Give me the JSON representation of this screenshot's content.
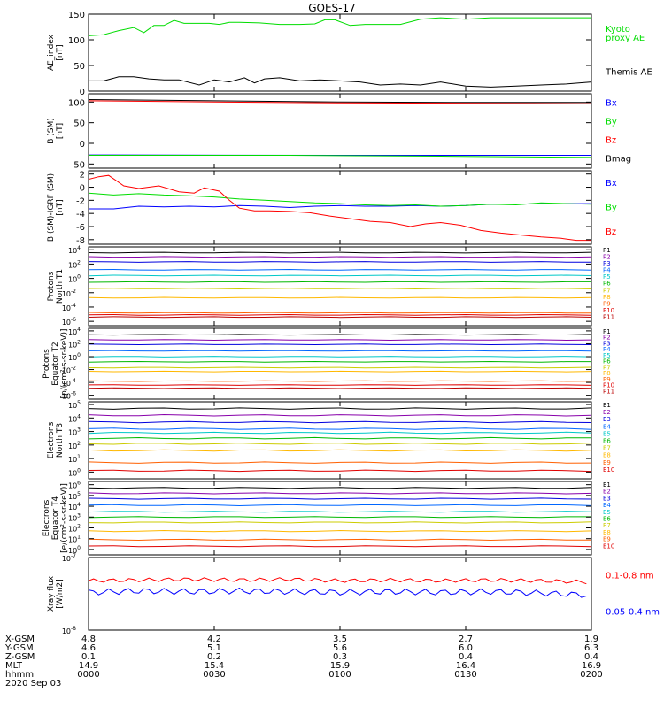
{
  "title": "GOES-17",
  "colors": {
    "black": "#000000",
    "blue": "#0000ff",
    "green": "#00dd00",
    "red": "#ff0000",
    "P": [
      "#000000",
      "#8800aa",
      "#0000dd",
      "#0066ff",
      "#00c8c8",
      "#00b800",
      "#cccc00",
      "#ffb800",
      "#ff6000",
      "#e00000",
      "#bb0000"
    ],
    "E": [
      "#000000",
      "#8800aa",
      "#0000dd",
      "#0066ff",
      "#00c8c8",
      "#00b800",
      "#cccc00",
      "#ffb800",
      "#ff6000",
      "#e00000"
    ]
  },
  "time_labels": [
    "0000",
    "0030",
    "0100",
    "0130",
    "0200"
  ],
  "ephemeris": {
    "labels": [
      "X-GSM",
      "Y-GSM",
      "Z-GSM",
      "MLT",
      "hhmm",
      "2020 Sep 03"
    ],
    "rows": [
      [
        "4.8",
        "4.2",
        "3.5",
        "2.7",
        "1.9"
      ],
      [
        "4.6",
        "5.1",
        "5.6",
        "6.0",
        "6.3"
      ],
      [
        "0.1",
        "0.2",
        "0.3",
        "0.4",
        "0.4"
      ],
      [
        "14.9",
        "15.4",
        "15.9",
        "16.4",
        "16.9"
      ],
      [
        "0000",
        "0030",
        "0100",
        "0130",
        "0200"
      ]
    ]
  },
  "chart_data": [
    {
      "type": "line",
      "ylabel": [
        "AE_index",
        "[nT]"
      ],
      "ylim": [
        0,
        150
      ],
      "yticks": [
        {
          "v": 0,
          "t": "0"
        },
        {
          "v": 50,
          "t": "50"
        },
        {
          "v": 100,
          "t": "100"
        },
        {
          "v": 150,
          "t": "150"
        }
      ],
      "legend": [
        {
          "text": [
            "Kyoto",
            "proxy AE"
          ],
          "color": "green"
        },
        {
          "text": [
            "Themis AE"
          ],
          "color": "black"
        }
      ],
      "series": [
        {
          "name": "Kyoto proxy AE",
          "color": "green",
          "x": [
            0,
            3,
            6,
            9,
            11,
            13,
            15,
            17,
            19,
            22,
            24,
            26,
            28,
            30,
            34,
            38,
            42,
            45,
            47,
            49,
            52,
            55,
            58,
            62,
            66,
            70,
            75,
            80,
            85,
            90,
            95,
            100
          ],
          "y": [
            108,
            110,
            118,
            124,
            114,
            128,
            128,
            138,
            132,
            132,
            132,
            130,
            134,
            134,
            133,
            130,
            130,
            131,
            139,
            139,
            128,
            130,
            130,
            130,
            140,
            143,
            140,
            143,
            143,
            143,
            143,
            143
          ]
        },
        {
          "name": "Themis AE",
          "color": "black",
          "x": [
            0,
            3,
            6,
            9,
            12,
            15,
            18,
            22,
            25,
            28,
            31,
            33,
            35,
            38,
            42,
            46,
            50,
            54,
            58,
            62,
            66,
            70,
            75,
            80,
            85,
            90,
            95,
            100
          ],
          "y": [
            20,
            20,
            28,
            28,
            24,
            22,
            22,
            12,
            22,
            18,
            26,
            16,
            24,
            26,
            20,
            22,
            20,
            18,
            12,
            14,
            12,
            18,
            10,
            8,
            10,
            12,
            14,
            18
          ]
        }
      ]
    },
    {
      "type": "line",
      "ylabel": [
        "B (SM)",
        "[nT]"
      ],
      "ylim": [
        -60,
        120
      ],
      "yticks": [
        {
          "v": -50,
          "t": "-50"
        },
        {
          "v": 0,
          "t": "0"
        },
        {
          "v": 50,
          "t": "50"
        },
        {
          "v": 100,
          "t": "100"
        }
      ],
      "legend": [
        {
          "text": [
            "Bx"
          ],
          "color": "blue"
        },
        {
          "text": [
            "By"
          ],
          "color": "green"
        },
        {
          "text": [
            "Bz"
          ],
          "color": "red"
        },
        {
          "text": [
            "Bmag"
          ],
          "color": "black"
        }
      ],
      "series": [
        {
          "name": "Bx",
          "color": "blue",
          "x": [
            0,
            50,
            100
          ],
          "y": [
            -28,
            -29,
            -29
          ]
        },
        {
          "name": "By",
          "color": "green",
          "x": [
            0,
            40,
            70,
            100
          ],
          "y": [
            -29,
            -29,
            -31,
            -34
          ]
        },
        {
          "name": "Bmag",
          "color": "black",
          "x": [
            0,
            25,
            50,
            75,
            100
          ],
          "y": [
            106,
            103,
            100,
            99,
            99
          ]
        },
        {
          "name": "Bz",
          "color": "red",
          "x": [
            0,
            25,
            50,
            75,
            100
          ],
          "y": [
            103,
            100,
            98,
            97,
            96
          ]
        }
      ]
    },
    {
      "type": "line",
      "ylabel": [
        "B (SM)-IGRF (SM)",
        "[nT]"
      ],
      "ylim": [
        -8.7,
        2.5
      ],
      "yticks": [
        {
          "v": 2,
          "t": "2"
        },
        {
          "v": 0,
          "t": "0"
        },
        {
          "v": -2,
          "t": "-2"
        },
        {
          "v": -4,
          "t": "-4"
        },
        {
          "v": -6,
          "t": "-6"
        },
        {
          "v": -8,
          "t": "-8"
        }
      ],
      "legend": [
        {
          "text": [
            "Bx"
          ],
          "color": "blue"
        },
        {
          "text": [
            "By"
          ],
          "color": "green"
        },
        {
          "text": [
            "Bz"
          ],
          "color": "red"
        }
      ],
      "series": [
        {
          "name": "Bx",
          "color": "blue",
          "x": [
            0,
            5,
            10,
            15,
            20,
            25,
            30,
            35,
            40,
            45,
            50,
            55,
            60,
            65,
            70,
            75,
            80,
            85,
            90,
            95,
            100
          ],
          "y": [
            -3.3,
            -3.3,
            -2.9,
            -3.0,
            -2.9,
            -3.0,
            -2.8,
            -2.9,
            -3.1,
            -2.9,
            -2.8,
            -2.9,
            -2.9,
            -2.8,
            -2.9,
            -2.8,
            -2.6,
            -2.6,
            -2.5,
            -2.5,
            -2.5
          ]
        },
        {
          "name": "By",
          "color": "green",
          "x": [
            0,
            5,
            10,
            15,
            20,
            25,
            30,
            35,
            40,
            45,
            50,
            55,
            60,
            65,
            70,
            75,
            80,
            85,
            90,
            95,
            100
          ],
          "y": [
            -0.9,
            -1.2,
            -1.0,
            -1.2,
            -1.3,
            -1.5,
            -1.8,
            -2.0,
            -2.2,
            -2.4,
            -2.5,
            -2.7,
            -2.8,
            -2.7,
            -2.9,
            -2.8,
            -2.6,
            -2.7,
            -2.4,
            -2.5,
            -2.6
          ]
        },
        {
          "name": "Bz",
          "color": "red",
          "x": [
            0,
            2,
            4,
            7,
            10,
            14,
            18,
            21,
            23,
            26,
            28,
            30,
            33,
            36,
            40,
            44,
            48,
            52,
            56,
            60,
            64,
            67,
            70,
            74,
            78,
            82,
            86,
            90,
            94,
            97,
            100
          ],
          "y": [
            1.2,
            1.6,
            1.8,
            0.2,
            -0.2,
            0.2,
            -0.7,
            -0.9,
            -0.1,
            -0.6,
            -2.0,
            -3.2,
            -3.6,
            -3.6,
            -3.7,
            -3.9,
            -4.4,
            -4.8,
            -5.2,
            -5.4,
            -6.0,
            -5.6,
            -5.4,
            -5.8,
            -6.6,
            -7.0,
            -7.3,
            -7.6,
            -7.8,
            -8.1,
            -8.1
          ]
        }
      ]
    },
    {
      "type": "line",
      "log": true,
      "ylabel": [
        "Protons",
        "North T1"
      ],
      "ylim": [
        -6.6,
        4.4
      ],
      "yticks": [
        {
          "v": 4,
          "t": "10",
          "e": "4"
        },
        {
          "v": 2,
          "t": "10",
          "e": "2"
        },
        {
          "v": 0,
          "t": "10",
          "e": "0"
        },
        {
          "v": -2,
          "t": "10",
          "e": "-2"
        },
        {
          "v": -4,
          "t": "10",
          "e": "-4"
        },
        {
          "v": -6,
          "t": "10",
          "e": "-6"
        }
      ],
      "channels": [
        "P1",
        "P2",
        "P3",
        "P4",
        "P5",
        "P6",
        "P7",
        "P8",
        "P9",
        "P10",
        "P11"
      ],
      "levels": [
        3.6,
        3.0,
        2.3,
        1.2,
        0.4,
        -0.5,
        -1.4,
        -2.7,
        -4.8,
        -5.1,
        -5.4
      ]
    },
    {
      "type": "line",
      "log": true,
      "ylabel": [
        "Protons",
        "Equator T2",
        "[p/(cm²-s-sr-keV)]"
      ],
      "ylim": [
        -6.6,
        4.4
      ],
      "yticks": [
        {
          "v": 4,
          "t": "10",
          "e": "4"
        },
        {
          "v": 2,
          "t": "10",
          "e": "2"
        },
        {
          "v": 0,
          "t": "10",
          "e": "0"
        },
        {
          "v": -2,
          "t": "10",
          "e": "-2"
        },
        {
          "v": -4,
          "t": "10",
          "e": "-4"
        },
        {
          "v": -6,
          "t": "10",
          "e": "-6"
        }
      ],
      "channels": [
        "P1",
        "P2",
        "P3",
        "P4",
        "P5",
        "P6",
        "P7",
        "P8",
        "P9",
        "P10",
        "P11"
      ],
      "levels": [
        3.4,
        2.6,
        1.9,
        0.9,
        0.0,
        -0.8,
        -1.7,
        -2.3,
        -3.8,
        -4.4,
        -4.9
      ]
    },
    {
      "type": "line",
      "log": true,
      "ylabel": [
        "Electrons",
        "North T3"
      ],
      "ylim": [
        -0.5,
        5.2
      ],
      "yticks": [
        {
          "v": 5,
          "t": "10",
          "e": "5"
        },
        {
          "v": 4,
          "t": "10",
          "e": "4"
        },
        {
          "v": 3,
          "t": "10",
          "e": "3"
        },
        {
          "v": 2,
          "t": "10",
          "e": "2"
        },
        {
          "v": 1,
          "t": "10",
          "e": "1"
        },
        {
          "v": 0,
          "t": "10",
          "e": "0"
        }
      ],
      "channels": [
        "E1",
        "E2",
        "E3",
        "E4",
        "E5",
        "E6",
        "E7",
        "E8",
        "E9",
        "E10"
      ],
      "levels": [
        4.7,
        4.2,
        3.7,
        3.2,
        2.9,
        2.5,
        2.1,
        1.6,
        0.7,
        0.1
      ]
    },
    {
      "type": "line",
      "log": true,
      "ylabel": [
        "Electrons",
        "Equator T4",
        "[e/(cm²-s-sr-keV)]"
      ],
      "ylim": [
        -0.5,
        6.3
      ],
      "yticks": [
        {
          "v": 6,
          "t": "10",
          "e": "6"
        },
        {
          "v": 5,
          "t": "10",
          "e": "5"
        },
        {
          "v": 4,
          "t": "10",
          "e": "4"
        },
        {
          "v": 3,
          "t": "10",
          "e": "3"
        },
        {
          "v": 2,
          "t": "10",
          "e": "2"
        },
        {
          "v": 1,
          "t": "10",
          "e": "1"
        },
        {
          "v": 0,
          "t": "10",
          "e": "0"
        }
      ],
      "channels": [
        "E1",
        "E2",
        "E3",
        "E4",
        "E5",
        "E6",
        "E7",
        "E8",
        "E9",
        "E10"
      ],
      "levels": [
        5.7,
        5.2,
        4.7,
        4.1,
        3.5,
        3.0,
        2.5,
        1.7,
        0.9,
        0.3
      ]
    },
    {
      "type": "line",
      "log": true,
      "ylabel": [
        "Xray flux",
        "[W/m2]"
      ],
      "ylim": [
        -8,
        -7
      ],
      "yticks": [
        {
          "v": -7,
          "t": "10",
          "e": "-7"
        },
        {
          "v": -8,
          "t": "10",
          "e": "-8"
        }
      ],
      "legend": [
        {
          "text": [
            "0.1-0.8 nm"
          ],
          "color": "red"
        },
        {
          "text": [
            "0.05-0.4 nm"
          ],
          "color": "blue"
        }
      ],
      "series": [
        {
          "name": "0.1-0.8 nm",
          "color": "red",
          "noise": 0.025,
          "x": [
            0,
            10,
            20,
            30,
            40,
            50,
            60,
            70,
            80,
            90,
            100
          ],
          "y": [
            -7.32,
            -7.31,
            -7.3,
            -7.31,
            -7.3,
            -7.32,
            -7.31,
            -7.32,
            -7.31,
            -7.32,
            -7.34
          ]
        },
        {
          "name": "0.05-0.4 nm",
          "color": "blue",
          "noise": 0.04,
          "x": [
            0,
            10,
            20,
            30,
            40,
            50,
            60,
            70,
            80,
            90,
            100
          ],
          "y": [
            -7.48,
            -7.46,
            -7.47,
            -7.46,
            -7.47,
            -7.48,
            -7.47,
            -7.48,
            -7.47,
            -7.49,
            -7.52
          ]
        }
      ]
    }
  ]
}
